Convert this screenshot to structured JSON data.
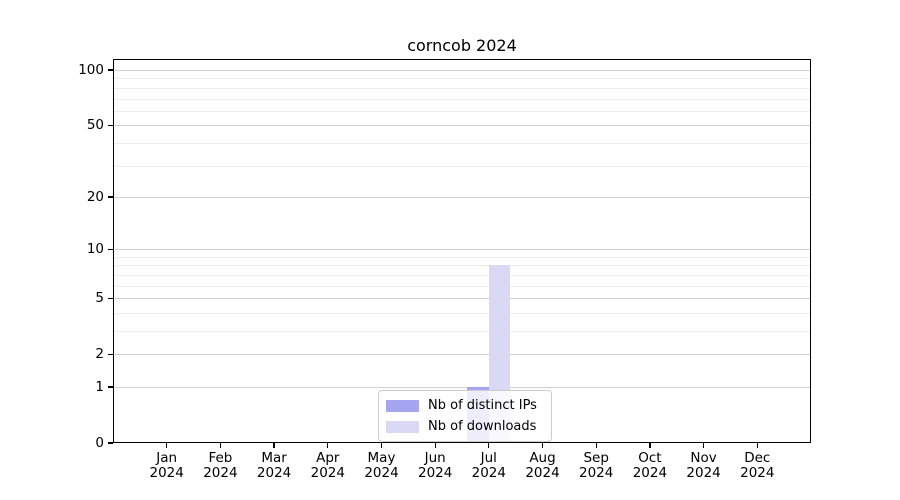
{
  "title": "corncob 2024",
  "legend": {
    "items": [
      {
        "label": "Nb of distinct IPs",
        "color": "#a5a5f0"
      },
      {
        "label": "Nb of downloads",
        "color": "#d9d9f6"
      }
    ]
  },
  "chart_data": {
    "type": "bar",
    "title": "corncob 2024",
    "categories": [
      "Jan",
      "Feb",
      "Mar",
      "Apr",
      "May",
      "Jun",
      "Jul",
      "Aug",
      "Sep",
      "Oct",
      "Nov",
      "Dec"
    ],
    "category_sublabel": "2024",
    "series": [
      {
        "name": "Nb of distinct IPs",
        "color": "#a5a5f0",
        "values": [
          0,
          0,
          0,
          0,
          0,
          0,
          1,
          0,
          0,
          0,
          0,
          0
        ]
      },
      {
        "name": "Nb of downloads",
        "color": "#d9d9f6",
        "values": [
          0,
          0,
          0,
          0,
          0,
          0,
          8,
          0,
          0,
          0,
          0,
          0
        ]
      }
    ],
    "xlabel": "",
    "ylabel": "",
    "ylim": [
      0,
      100
    ],
    "y_scale": "log1p",
    "y_major_ticks": [
      0,
      1,
      2,
      5,
      10,
      20,
      50,
      100
    ],
    "y_minor_ticks": [
      3,
      4,
      6,
      7,
      8,
      9,
      30,
      40,
      60,
      70,
      80,
      90
    ],
    "grid": "horizontal",
    "legend_position": "lower center"
  },
  "colors": {
    "background": "#ffffff",
    "axis": "#000000",
    "grid_major": "#d3d3d3",
    "grid_minor": "#ededed",
    "bar_distinct_ips": "#a5a5f0",
    "bar_downloads": "#d9d9f6"
  }
}
